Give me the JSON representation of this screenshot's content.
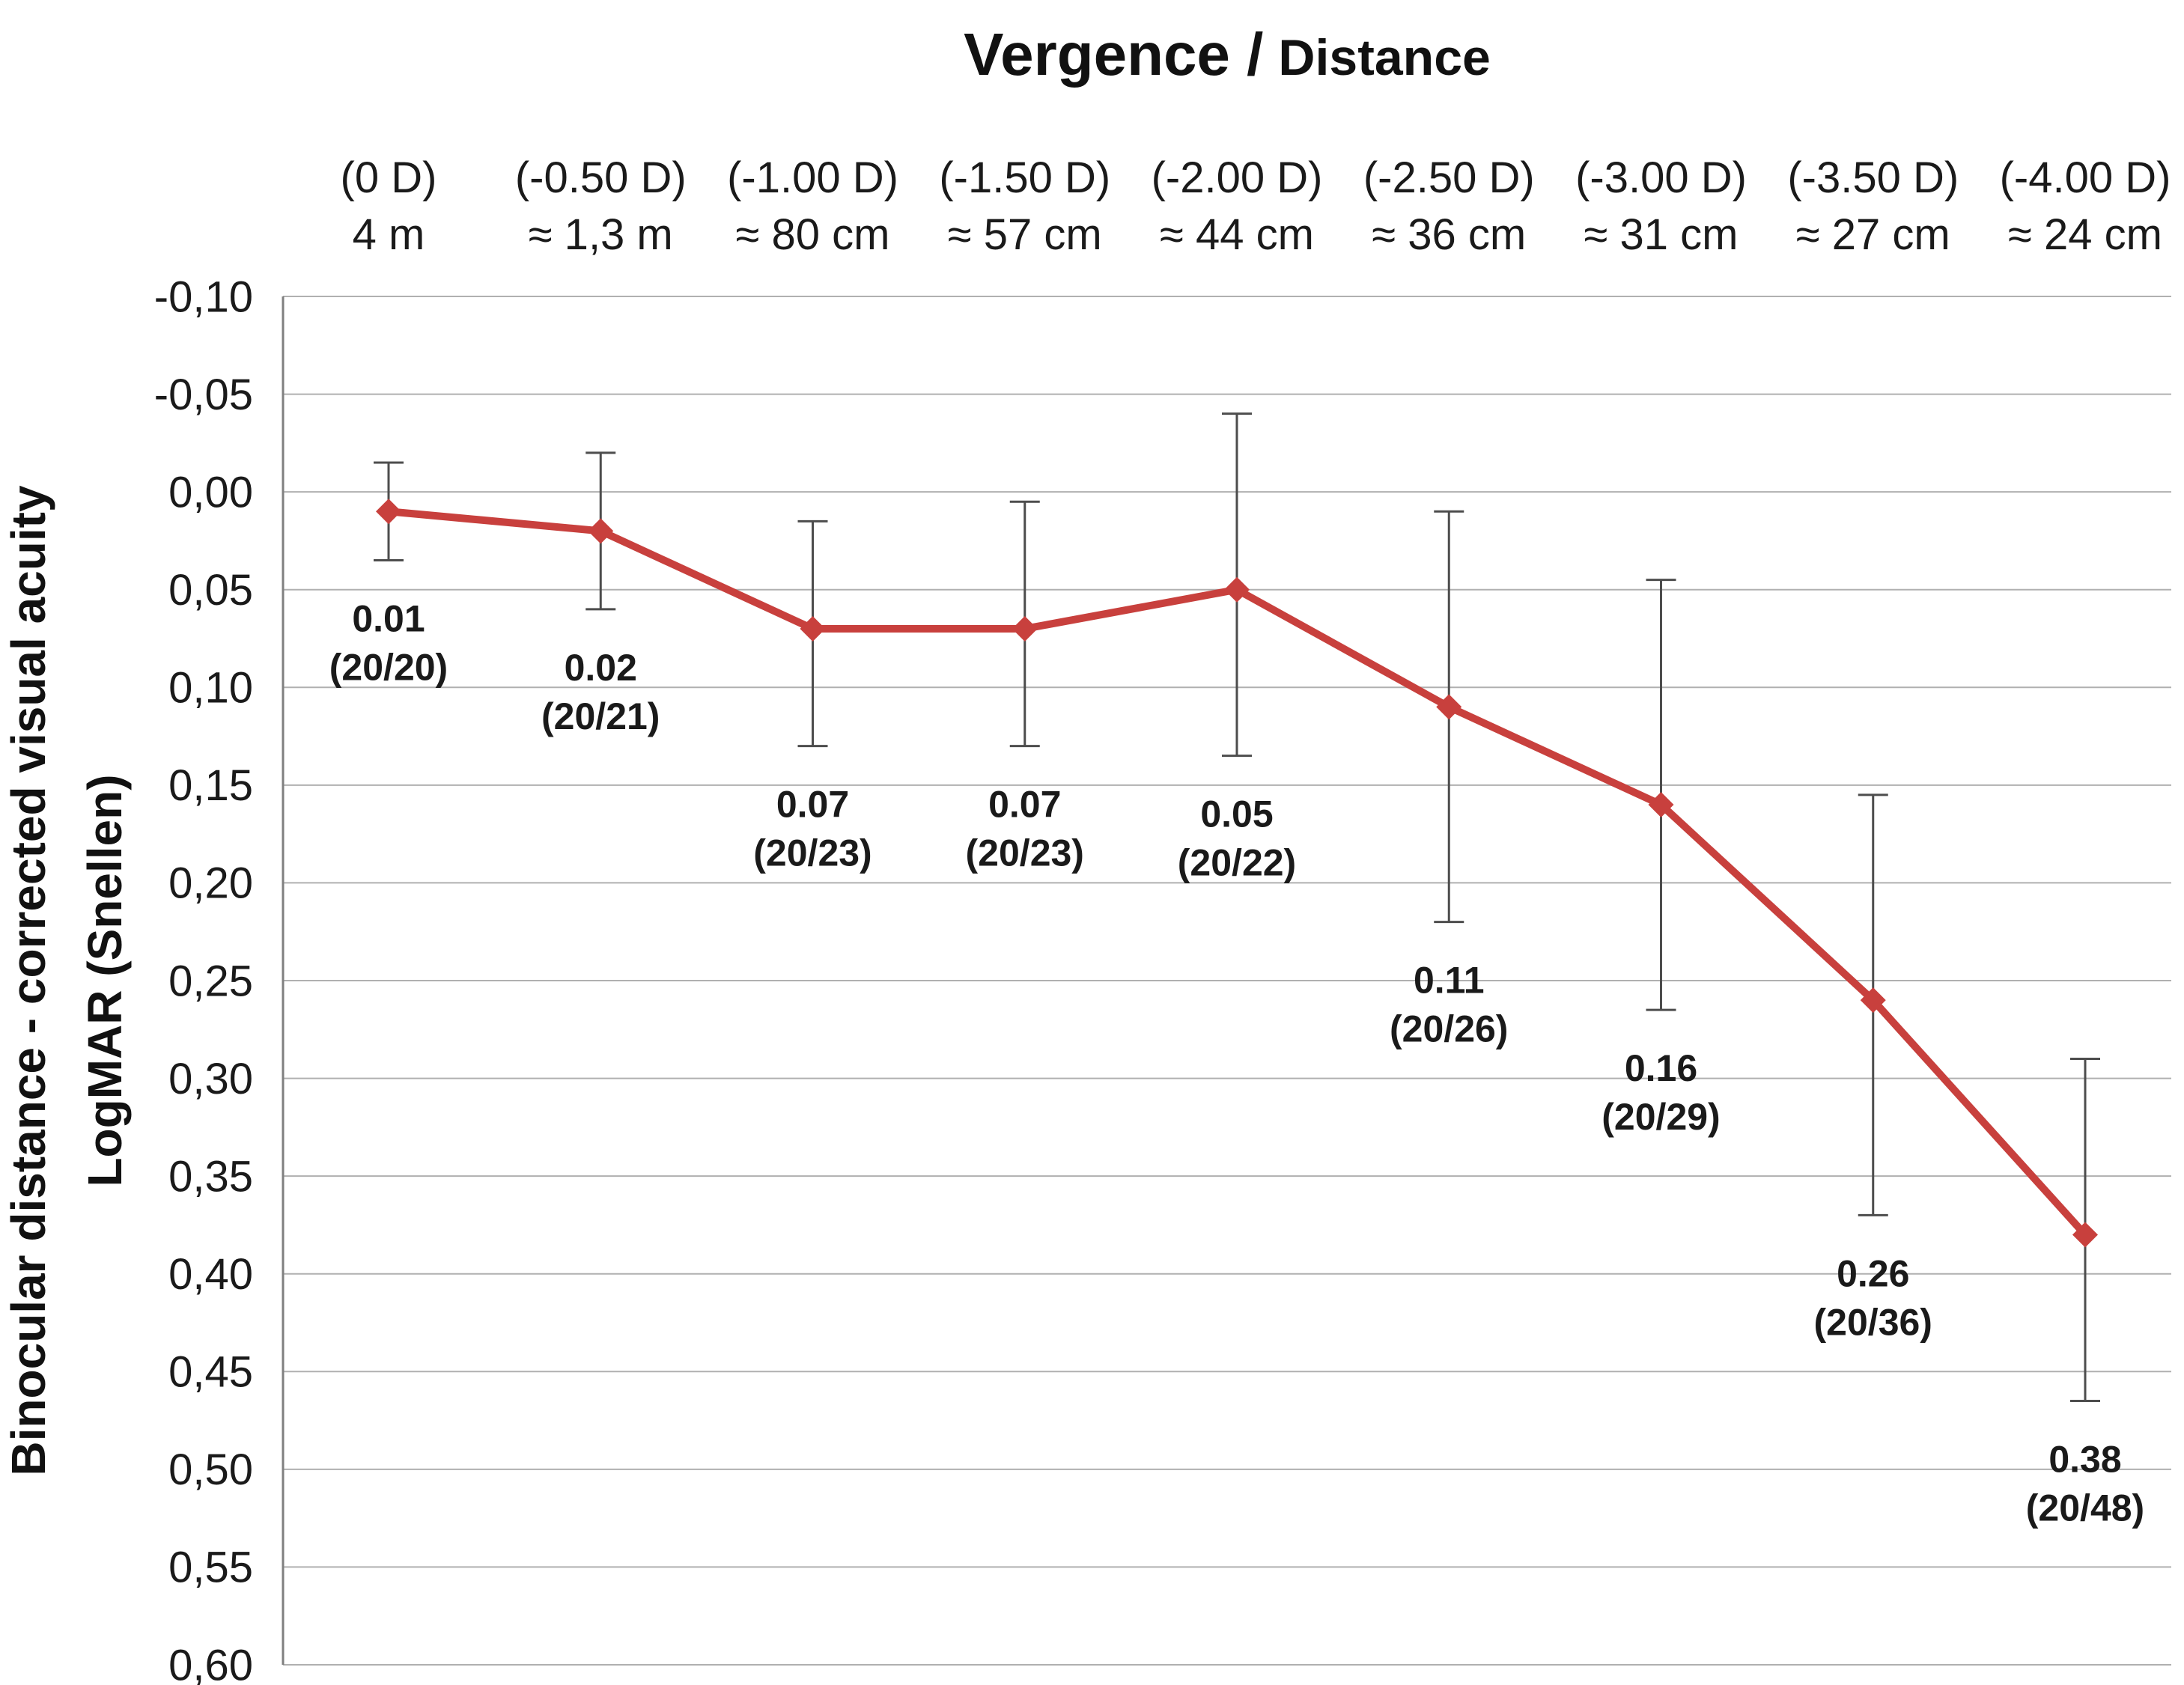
{
  "accent_color": "#c8403d",
  "title": {
    "part1": "Vergence /",
    "part2": "Distance"
  },
  "y_axis": {
    "line1": "Binocular distance - corrected visual acuity",
    "line2": "LogMAR (Snellen)"
  },
  "chart_data": {
    "type": "line",
    "title": "Vergence / Distance",
    "xlabel": "Vergence / Distance",
    "ylabel": "Binocular distance - corrected visual acuity, LogMAR (Snellen)",
    "y_axis_inverted": true,
    "ylim": [
      -0.1,
      0.6
    ],
    "ytick_step": 0.05,
    "ytick_labels": [
      "-0,10",
      "-0,05",
      "0,00",
      "0,05",
      "0,10",
      "0,15",
      "0,20",
      "0,25",
      "0,30",
      "0,35",
      "0,40",
      "0,45",
      "0,50",
      "0,55",
      "0,60"
    ],
    "grid": "horizontal",
    "legend": "none",
    "categories_vergence": [
      "(0 D)",
      "(-0.50 D)",
      "(-1.00 D)",
      "(-1.50 D)",
      "(-2.00 D)",
      "(-2.50 D)",
      "(-3.00 D)",
      "(-3.50 D)",
      "(-4.00 D)"
    ],
    "categories_distance": [
      "4 m",
      "≈ 1,3 m",
      "≈ 80 cm",
      "≈ 57 cm",
      "≈ 44 cm",
      "≈ 36 cm",
      "≈ 31 cm",
      "≈ 27 cm",
      "≈ 24 cm"
    ],
    "series": [
      {
        "name": "Binocular distance-corrected visual acuity (LogMAR)",
        "color": "#c8403d",
        "values": [
          0.01,
          0.02,
          0.07,
          0.07,
          0.05,
          0.11,
          0.16,
          0.26,
          0.38
        ],
        "error_bar_min": [
          -0.015,
          -0.02,
          0.015,
          0.005,
          -0.04,
          0.01,
          0.045,
          0.155,
          0.29
        ],
        "error_bar_max": [
          0.035,
          0.06,
          0.13,
          0.13,
          0.135,
          0.22,
          0.265,
          0.37,
          0.465
        ],
        "point_labels_logmar": [
          "0.01",
          "0.02",
          "0.07",
          "0.07",
          "0.05",
          "0.11",
          "0.16",
          "0.26",
          "0.38"
        ],
        "point_labels_snellen": [
          "(20/20)",
          "(20/21)",
          "(20/23)",
          "(20/23)",
          "(20/22)",
          "(20/26)",
          "(20/29)",
          "(20/36)",
          "(20/48)"
        ]
      }
    ]
  }
}
